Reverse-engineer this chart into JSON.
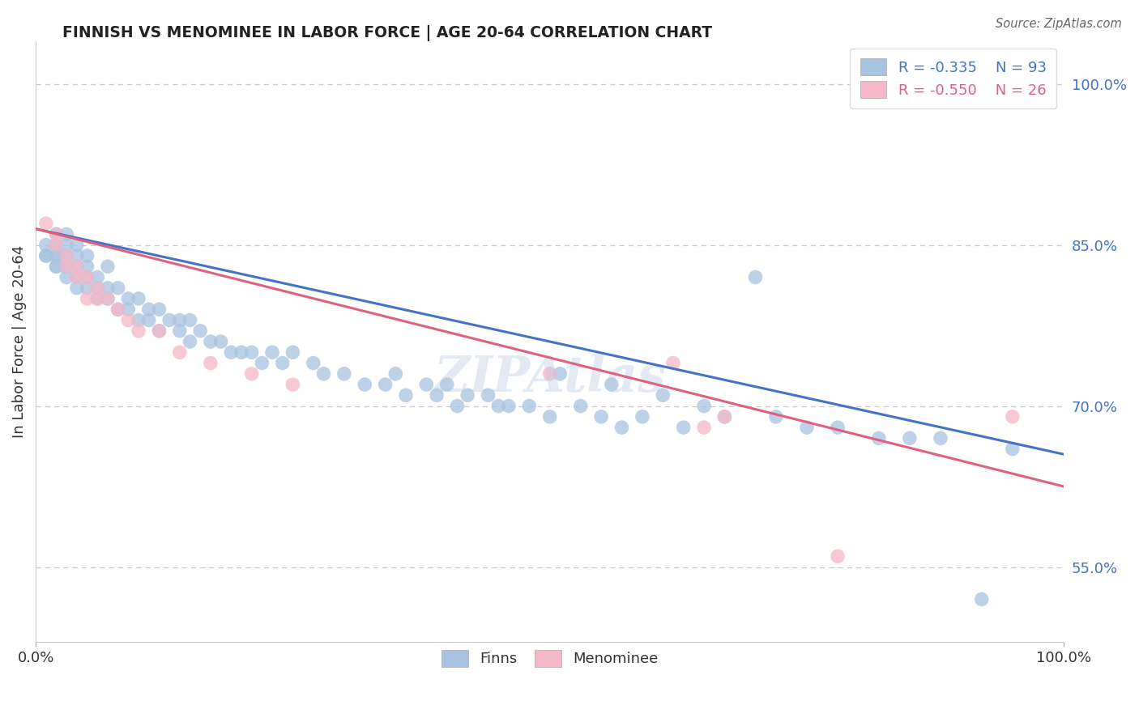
{
  "title": "FINNISH VS MENOMINEE IN LABOR FORCE | AGE 20-64 CORRELATION CHART",
  "source": "Source: ZipAtlas.com",
  "ylabel": "In Labor Force | Age 20-64",
  "xlim": [
    0.0,
    1.0
  ],
  "ylim": [
    0.48,
    1.04
  ],
  "right_ytick_labels": [
    "55.0%",
    "70.0%",
    "85.0%",
    "100.0%"
  ],
  "right_ytick_values": [
    0.55,
    0.7,
    0.85,
    1.0
  ],
  "finn_color": "#a8c4e0",
  "menominee_color": "#f4b8c8",
  "finn_line_color": "#4472c4",
  "menominee_line_color": "#e06080",
  "grid_color": "#c8c8c8",
  "background_color": "#ffffff",
  "finns_x": [
    0.01,
    0.01,
    0.01,
    0.02,
    0.02,
    0.02,
    0.02,
    0.02,
    0.02,
    0.02,
    0.03,
    0.03,
    0.03,
    0.03,
    0.03,
    0.03,
    0.03,
    0.04,
    0.04,
    0.04,
    0.04,
    0.04,
    0.05,
    0.05,
    0.05,
    0.05,
    0.06,
    0.06,
    0.06,
    0.07,
    0.07,
    0.07,
    0.08,
    0.08,
    0.09,
    0.09,
    0.1,
    0.1,
    0.11,
    0.11,
    0.12,
    0.12,
    0.13,
    0.14,
    0.14,
    0.15,
    0.15,
    0.16,
    0.17,
    0.18,
    0.19,
    0.2,
    0.21,
    0.22,
    0.23,
    0.24,
    0.25,
    0.27,
    0.28,
    0.3,
    0.32,
    0.34,
    0.35,
    0.36,
    0.38,
    0.39,
    0.4,
    0.41,
    0.42,
    0.44,
    0.45,
    0.46,
    0.48,
    0.5,
    0.51,
    0.53,
    0.55,
    0.56,
    0.57,
    0.59,
    0.61,
    0.63,
    0.65,
    0.67,
    0.7,
    0.72,
    0.75,
    0.78,
    0.82,
    0.85,
    0.88,
    0.92,
    0.95
  ],
  "finns_y": [
    0.84,
    0.84,
    0.85,
    0.83,
    0.83,
    0.84,
    0.84,
    0.85,
    0.85,
    0.86,
    0.82,
    0.83,
    0.83,
    0.84,
    0.84,
    0.85,
    0.86,
    0.81,
    0.82,
    0.83,
    0.84,
    0.85,
    0.81,
    0.82,
    0.83,
    0.84,
    0.8,
    0.81,
    0.82,
    0.8,
    0.81,
    0.83,
    0.79,
    0.81,
    0.79,
    0.8,
    0.78,
    0.8,
    0.78,
    0.79,
    0.77,
    0.79,
    0.78,
    0.77,
    0.78,
    0.76,
    0.78,
    0.77,
    0.76,
    0.76,
    0.75,
    0.75,
    0.75,
    0.74,
    0.75,
    0.74,
    0.75,
    0.74,
    0.73,
    0.73,
    0.72,
    0.72,
    0.73,
    0.71,
    0.72,
    0.71,
    0.72,
    0.7,
    0.71,
    0.71,
    0.7,
    0.7,
    0.7,
    0.69,
    0.73,
    0.7,
    0.69,
    0.72,
    0.68,
    0.69,
    0.71,
    0.68,
    0.7,
    0.69,
    0.82,
    0.69,
    0.68,
    0.68,
    0.67,
    0.67,
    0.67,
    0.52,
    0.66
  ],
  "menominee_x": [
    0.01,
    0.02,
    0.02,
    0.03,
    0.03,
    0.04,
    0.04,
    0.05,
    0.05,
    0.06,
    0.06,
    0.07,
    0.08,
    0.09,
    0.1,
    0.12,
    0.14,
    0.17,
    0.21,
    0.25,
    0.5,
    0.62,
    0.65,
    0.67,
    0.78,
    0.95
  ],
  "menominee_y": [
    0.87,
    0.85,
    0.86,
    0.83,
    0.84,
    0.82,
    0.83,
    0.8,
    0.82,
    0.8,
    0.81,
    0.8,
    0.79,
    0.78,
    0.77,
    0.77,
    0.75,
    0.74,
    0.73,
    0.72,
    0.73,
    0.74,
    0.68,
    0.69,
    0.56,
    0.69
  ],
  "watermark": "ZIPAtlas",
  "finn_line_x0": 0.0,
  "finn_line_x1": 1.0,
  "finn_line_y0": 0.865,
  "finn_line_y1": 0.655,
  "men_line_y0": 0.865,
  "men_line_y1": 0.625
}
